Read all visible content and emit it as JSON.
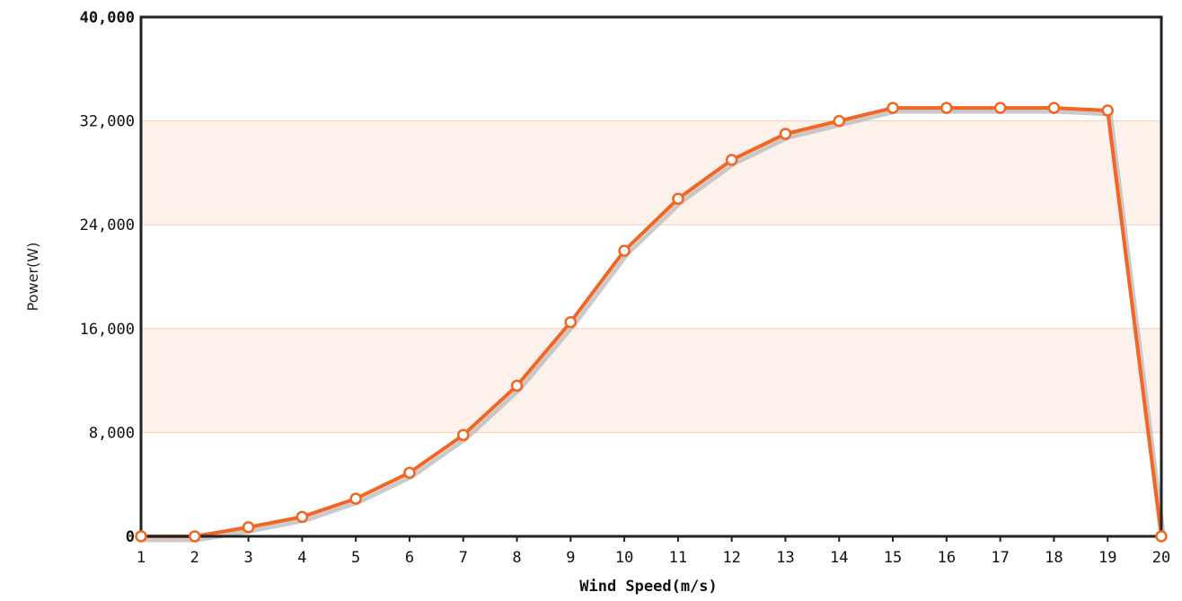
{
  "chart_data": {
    "type": "line",
    "title": "",
    "xlabel": "Wind Speed(m/s)",
    "ylabel": "Power(W)",
    "x": [
      1,
      2,
      3,
      4,
      5,
      6,
      7,
      8,
      9,
      10,
      11,
      12,
      13,
      14,
      15,
      16,
      17,
      18,
      19,
      20
    ],
    "x_tick_labels": [
      "1",
      "2",
      "3",
      "4",
      "5",
      "6",
      "7",
      "8",
      "9",
      "10",
      "11",
      "12",
      "13",
      "14",
      "15",
      "16",
      "17",
      "18",
      "19",
      "20"
    ],
    "y_ticks": [
      0,
      8000,
      16000,
      24000,
      32000,
      40000
    ],
    "y_tick_labels": [
      "0",
      "8,000",
      "16,000",
      "24,000",
      "32,000",
      "40,000"
    ],
    "xlim": [
      1,
      20
    ],
    "ylim": [
      0,
      40000
    ],
    "series": [
      {
        "values": [
          0,
          0,
          700,
          1500,
          2900,
          4900,
          7800,
          11600,
          16500,
          22000,
          26000,
          29000,
          31000,
          32000,
          33000,
          33000,
          33000,
          33000,
          32800,
          0
        ]
      }
    ],
    "grid": true,
    "legend": "none",
    "colors": {
      "line": "#f26522",
      "marker_fill": "#ffffff",
      "band": "#fdf1ec",
      "gridline": "#f6cdb6",
      "frame": "#222222",
      "shadow": "#b8b8b8"
    }
  }
}
